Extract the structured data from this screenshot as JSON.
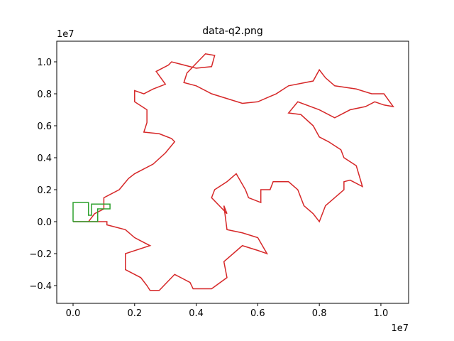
{
  "chart_data": {
    "type": "line",
    "title": "data-q2.png",
    "x_offset_label": "1e7",
    "y_offset_label": "1e7",
    "xlim": [
      -0.053,
      1.09
    ],
    "ylim": [
      -0.511,
      1.129
    ],
    "xticks": [
      {
        "value": 0,
        "label": "0.0"
      },
      0.2,
      0.4,
      0.6,
      0.8,
      {
        "value": 1,
        "label": "1.0"
      }
    ],
    "yticks": [
      {
        "value": -0.4,
        "label": "−0.4"
      },
      {
        "value": -0.2,
        "label": "−0.2"
      },
      {
        "value": 0,
        "label": "0.0"
      },
      0.2,
      0.4,
      0.6,
      0.8,
      {
        "value": 1,
        "label": "1.0"
      }
    ],
    "grid": false,
    "series": [
      {
        "color": "#d62728",
        "x": [
          0,
          0.11,
          0.11,
          0.17,
          0.2,
          0.22,
          0.25,
          0.17,
          0.17,
          0.22,
          0.24,
          0.25,
          0.28,
          0.33,
          0.38,
          0.39,
          0.45,
          0.5,
          0.49,
          0.55,
          0.6,
          0.63,
          0.6,
          0.55,
          0.5,
          0.49,
          0.5,
          0.45,
          0.46,
          0.5,
          0.53,
          0.56,
          0.57,
          0.61,
          0.61,
          0.64,
          0.65,
          0.7,
          0.73,
          0.75,
          0.78,
          0.8,
          0.82,
          0.88,
          0.88,
          0.9,
          0.94,
          0.92,
          0.88,
          0.87,
          0.83,
          0.8,
          0.78,
          0.74,
          0.7,
          0.73,
          0.8,
          0.85,
          0.9,
          0.95,
          0.98,
          1.01,
          1.04,
          1.01,
          0.97,
          0.92,
          0.85,
          0.82,
          0.8,
          0.78,
          0.7,
          0.66,
          0.6,
          0.55,
          0.5,
          0.45,
          0.4,
          0.36,
          0.37,
          0.43,
          0.46,
          0.45,
          0.4,
          0.32,
          0.31,
          0.27,
          0.3,
          0.26,
          0.23,
          0.2,
          0.2,
          0.24,
          0.24,
          0.23,
          0.28,
          0.32,
          0.33,
          0.3,
          0.26,
          0.2,
          0.18,
          0.15,
          0.1,
          0.1,
          0.07,
          0.05,
          0
        ],
        "values": [
          0,
          0,
          -0.02,
          -0.05,
          -0.1,
          -0.12,
          -0.15,
          -0.2,
          -0.3,
          -0.35,
          -0.4,
          -0.43,
          -0.43,
          -0.33,
          -0.38,
          -0.42,
          -0.42,
          -0.35,
          -0.25,
          -0.15,
          -0.18,
          -0.2,
          -0.1,
          -0.07,
          -0.05,
          0.1,
          0.05,
          0.15,
          0.2,
          0.25,
          0.3,
          0.2,
          0.15,
          0.12,
          0.2,
          0.2,
          0.25,
          0.25,
          0.2,
          0.1,
          0.05,
          0,
          0.1,
          0.2,
          0.25,
          0.26,
          0.22,
          0.35,
          0.4,
          0.45,
          0.5,
          0.53,
          0.6,
          0.67,
          0.68,
          0.75,
          0.7,
          0.65,
          0.7,
          0.72,
          0.75,
          0.73,
          0.72,
          0.8,
          0.8,
          0.83,
          0.85,
          0.9,
          0.95,
          0.88,
          0.85,
          0.8,
          0.75,
          0.74,
          0.77,
          0.8,
          0.85,
          0.87,
          0.93,
          1.05,
          1.04,
          0.97,
          0.96,
          1,
          0.98,
          0.94,
          0.86,
          0.83,
          0.8,
          0.82,
          0.75,
          0.7,
          0.62,
          0.56,
          0.55,
          0.52,
          0.5,
          0.43,
          0.36,
          0.3,
          0.27,
          0.2,
          0.15,
          0.08,
          0.05,
          0,
          0
        ]
      },
      {
        "color": "#2ca02c",
        "x": [
          0,
          0,
          0.05,
          0.05,
          0.06,
          0.06,
          0.12,
          0.12,
          0.08,
          0.08,
          0
        ],
        "values": [
          0,
          0.12,
          0.12,
          0.04,
          0.04,
          0.11,
          0.11,
          0.08,
          0.08,
          0,
          0
        ]
      }
    ]
  }
}
